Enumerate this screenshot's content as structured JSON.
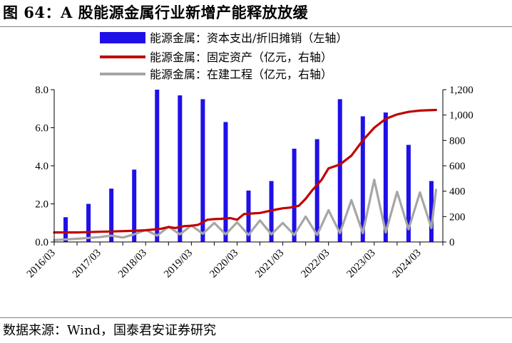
{
  "header": {
    "title": "图 64：A 股能源金属行业新增产能释放放缓"
  },
  "footer": {
    "source": "数据来源：Wind，国泰君安证券研究"
  },
  "colors": {
    "bar": "#1f10e8",
    "line_fixed": "#c00000",
    "line_cip": "#a6a6a6"
  },
  "chart_data": {
    "type": "bar+line",
    "title": "A 股能源金属行业新增产能释放放缓",
    "x_labels": [
      "2016/03",
      "2017/03",
      "2018/03",
      "2019/03",
      "2020/03",
      "2021/03",
      "2022/03",
      "2023/03",
      "2024/03"
    ],
    "left_axis": {
      "min": 0,
      "max": 8,
      "ticks": [
        "0.0",
        "2.0",
        "4.0",
        "6.0",
        "8.0"
      ]
    },
    "right_axis": {
      "min": 0,
      "max": 1200,
      "ticks": [
        "0",
        "200",
        "400",
        "600",
        "800",
        "1,000",
        "1,200"
      ]
    },
    "legend": [
      {
        "key": "capex",
        "label": "能源金属：资本支出/折旧摊销（左轴）"
      },
      {
        "key": "fixed",
        "label": "能源金属：固定资产（亿元，右轴）"
      },
      {
        "key": "cip",
        "label": "能源金属：在建工程（亿元，右轴）"
      }
    ],
    "series": [
      {
        "name": "能源金属：资本支出/折旧摊销（左轴）",
        "type": "bar",
        "axis": "left",
        "x": [
          0.5,
          1.5,
          2.5,
          3.5,
          4.5,
          5.5,
          6.5,
          7.5,
          8.5,
          9.5,
          10.5,
          11.5,
          12.5,
          13.5,
          14.5,
          15.5,
          16.5
        ],
        "values": [
          1.3,
          2.0,
          2.8,
          3.8,
          8.0,
          7.7,
          7.5,
          6.3,
          2.7,
          3.2,
          4.9,
          5.4,
          7.5,
          6.6,
          6.8,
          5.1,
          3.2
        ]
      },
      {
        "name": "能源金属：固定资产（亿元，右轴）",
        "type": "line",
        "axis": "right",
        "x": [
          0,
          1,
          2,
          3,
          4,
          4.7,
          5,
          5.3,
          5.7,
          6,
          6.3,
          6.7,
          7,
          7.3,
          7.7,
          8,
          8.3,
          8.7,
          9,
          9.3,
          9.7,
          10,
          10.3,
          10.7,
          11,
          11.3,
          11.7,
          12,
          12.5,
          13,
          13.5,
          14,
          14.5,
          15,
          15.5,
          16,
          16.4,
          16.7
        ],
        "values": [
          75,
          75,
          80,
          85,
          92,
          105,
          118,
          110,
          125,
          128,
          135,
          175,
          180,
          182,
          188,
          175,
          220,
          225,
          228,
          240,
          255,
          265,
          270,
          285,
          340,
          410,
          490,
          580,
          610,
          680,
          800,
          900,
          970,
          1005,
          1025,
          1035,
          1038,
          1040
        ]
      },
      {
        "name": "能源金属：在建工程（亿元，右轴）",
        "type": "line",
        "axis": "right",
        "x": [
          0,
          1,
          2,
          2.5,
          3,
          3.5,
          4,
          4.5,
          5,
          5.5,
          6,
          6.5,
          7,
          7.5,
          8,
          8.5,
          9,
          9.5,
          10,
          10.5,
          11,
          11.5,
          12,
          12.5,
          13,
          13.5,
          14,
          14.5,
          15,
          15.5,
          16,
          16.5,
          16.7
        ],
        "values": [
          15,
          25,
          38,
          50,
          35,
          60,
          95,
          50,
          120,
          60,
          130,
          65,
          150,
          60,
          155,
          55,
          170,
          60,
          150,
          55,
          200,
          55,
          250,
          70,
          330,
          70,
          490,
          75,
          395,
          100,
          390,
          110,
          410
        ]
      }
    ]
  }
}
